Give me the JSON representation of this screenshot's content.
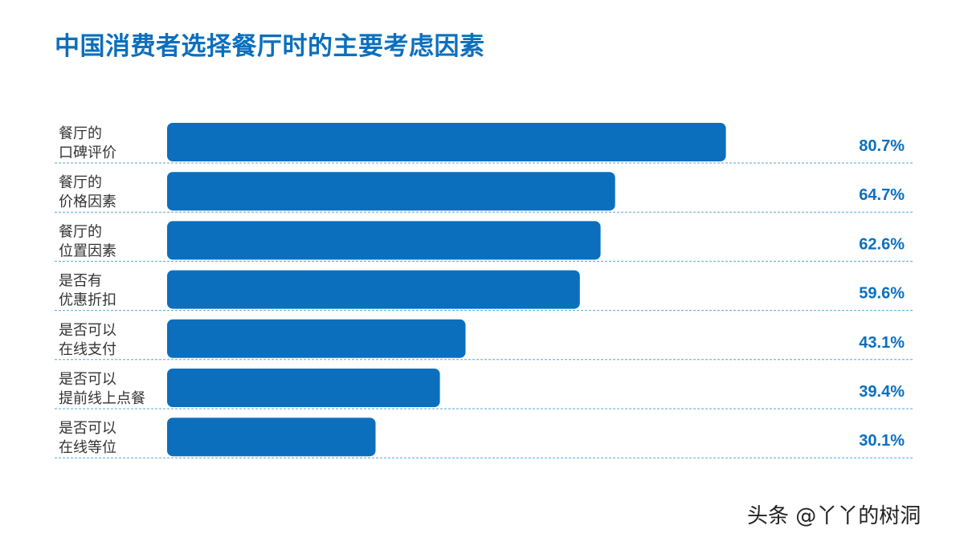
{
  "chart_data": {
    "type": "bar",
    "orientation": "horizontal",
    "title": "中国消费者选择餐厅时的主要考虑因素",
    "categories": [
      [
        "餐厅的",
        "口碑评价"
      ],
      [
        "餐厅的",
        "价格因素"
      ],
      [
        "餐厅的",
        "位置因素"
      ],
      [
        "是否有",
        "优惠折扣"
      ],
      [
        "是否可以",
        "在线支付"
      ],
      [
        "是否可以",
        "提前线上点餐"
      ],
      [
        "是否可以",
        "在线等位"
      ]
    ],
    "values": [
      80.7,
      64.7,
      62.6,
      59.6,
      43.1,
      39.4,
      30.1
    ],
    "value_labels": [
      "80.7%",
      "64.7%",
      "62.6%",
      "59.6%",
      "43.1%",
      "39.4%",
      "30.1%"
    ],
    "xlim": [
      0,
      100
    ],
    "grid": false,
    "colors": {
      "bar": "#0b6fbe",
      "value_label": "#0b6fbe",
      "separator": "#5aa6d0",
      "category_label": "#333333",
      "title": "#0b6fbe"
    }
  },
  "watermark": "头条 @丫丫的树洞"
}
